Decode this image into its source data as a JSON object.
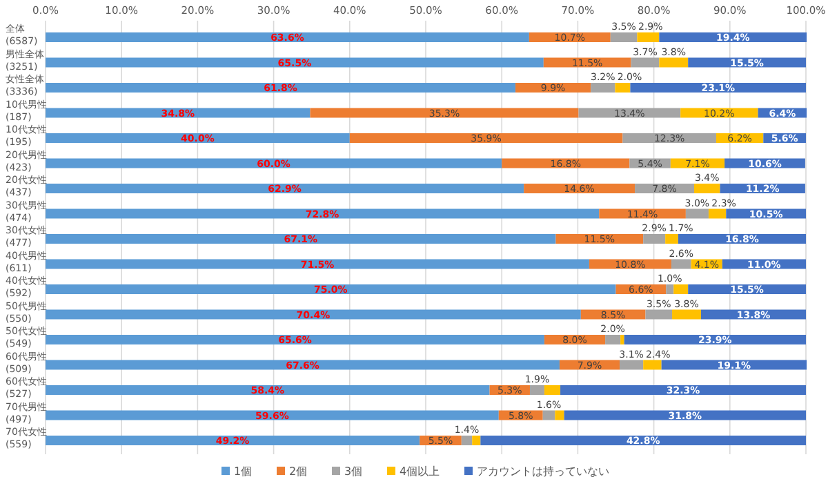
{
  "chart_data": {
    "type": "bar",
    "orientation": "horizontal",
    "stacked": true,
    "categories": [
      "全体\n(6587)",
      "男性全体\n(3251)",
      "女性全体\n(3336)",
      "10代男性\n(187)",
      "10代女性\n(195)",
      "20代男性\n(423)",
      "20代女性\n(437)",
      "30代男性\n(474)",
      "30代女性\n(477)",
      "40代男性\n(611)",
      "40代女性\n(592)",
      "50代男性\n(550)",
      "50代女性\n(549)",
      "60代男性\n(509)",
      "60代女性\n(527)",
      "70代男性\n(497)",
      "70代女性\n(559)"
    ],
    "series": [
      {
        "name": "1個",
        "color": "#5b9bd5",
        "values": [
          63.6,
          65.5,
          61.8,
          34.8,
          40.0,
          60.0,
          62.9,
          72.8,
          67.1,
          71.5,
          75.0,
          70.4,
          65.6,
          67.6,
          58.4,
          59.6,
          49.2
        ],
        "value_labels": [
          "63.6%",
          "65.5%",
          "61.8%",
          "34.8%",
          "40.0%",
          "60.0%",
          "62.9%",
          "72.8%",
          "67.1%",
          "71.5%",
          "75.0%",
          "70.4%",
          "65.6%",
          "67.6%",
          "58.4%",
          "59.6%",
          "49.2%"
        ]
      },
      {
        "name": "2個",
        "color": "#ed7d31",
        "values": [
          10.7,
          11.5,
          9.9,
          35.3,
          35.9,
          16.8,
          14.6,
          11.4,
          11.5,
          10.8,
          6.6,
          8.5,
          8.0,
          7.9,
          5.3,
          5.8,
          5.5
        ],
        "value_labels": [
          "10.7%",
          "11.5%",
          "9.9%",
          "35.3%",
          "35.9%",
          "16.8%",
          "14.6%",
          "11.4%",
          "11.5%",
          "10.8%",
          "6.6%",
          "8.5%",
          "8.0%",
          "7.9%",
          "5.3%",
          "5.8%",
          "5.5%"
        ]
      },
      {
        "name": "3個",
        "color": "#a5a5a5",
        "values": [
          3.5,
          3.7,
          3.2,
          13.4,
          12.3,
          5.4,
          7.8,
          3.0,
          2.9,
          2.6,
          1.0,
          3.5,
          2.0,
          3.1,
          1.9,
          1.6,
          1.4
        ],
        "value_labels": [
          "3.5%",
          "3.7%",
          "3.2%",
          "13.4%",
          "12.3%",
          "5.4%",
          "7.8%",
          "3.0%",
          "2.9%",
          "2.6%",
          "1.0%",
          "3.5%",
          "2.0%",
          "3.1%",
          "1.9%",
          "1.6%",
          "1.4%"
        ]
      },
      {
        "name": "4個以上",
        "color": "#ffc000",
        "values": [
          2.9,
          3.8,
          2.0,
          10.2,
          6.2,
          7.1,
          3.4,
          2.3,
          1.7,
          4.1,
          1.9,
          3.8,
          0.5,
          2.4,
          2.1,
          1.2,
          1.1
        ],
        "value_labels": [
          "2.9%",
          "3.8%",
          "2.0%",
          "10.2%",
          "6.2%",
          "7.1%",
          "3.4%",
          "2.3%",
          "1.7%",
          "4.1%",
          null,
          "3.8%",
          null,
          "2.4%",
          null,
          null,
          null
        ]
      },
      {
        "name": "アカウントは持っていない",
        "color": "#4472c4",
        "values": [
          19.4,
          15.5,
          23.1,
          6.4,
          5.6,
          10.6,
          11.2,
          10.5,
          16.8,
          11.0,
          15.5,
          13.8,
          23.9,
          19.1,
          32.3,
          31.8,
          42.8
        ],
        "value_labels": [
          "19.4%",
          "15.5%",
          "23.1%",
          "6.4%",
          "5.6%",
          "10.6%",
          "11.2%",
          "10.5%",
          "16.8%",
          "11.0%",
          "15.5%",
          "13.8%",
          "23.9%",
          "19.1%",
          "32.3%",
          "31.8%",
          "42.8%"
        ]
      }
    ],
    "xlim": [
      0,
      100
    ],
    "xticks": [
      {
        "value": 0,
        "label": "0.0%"
      },
      {
        "value": 10,
        "label": "10.0%"
      },
      {
        "value": 20,
        "label": "20.0%"
      },
      {
        "value": 30,
        "label": "30.0%"
      },
      {
        "value": 40,
        "label": "40.0%"
      },
      {
        "value": 50,
        "label": "50.0%"
      },
      {
        "value": 60,
        "label": "60.0%"
      },
      {
        "value": 70,
        "label": "70.0%"
      },
      {
        "value": 80,
        "label": "80.0%"
      },
      {
        "value": 90,
        "label": "90.0%"
      },
      {
        "value": 100,
        "label": "100.0%"
      }
    ],
    "grid": "x",
    "legend": "bottom"
  }
}
